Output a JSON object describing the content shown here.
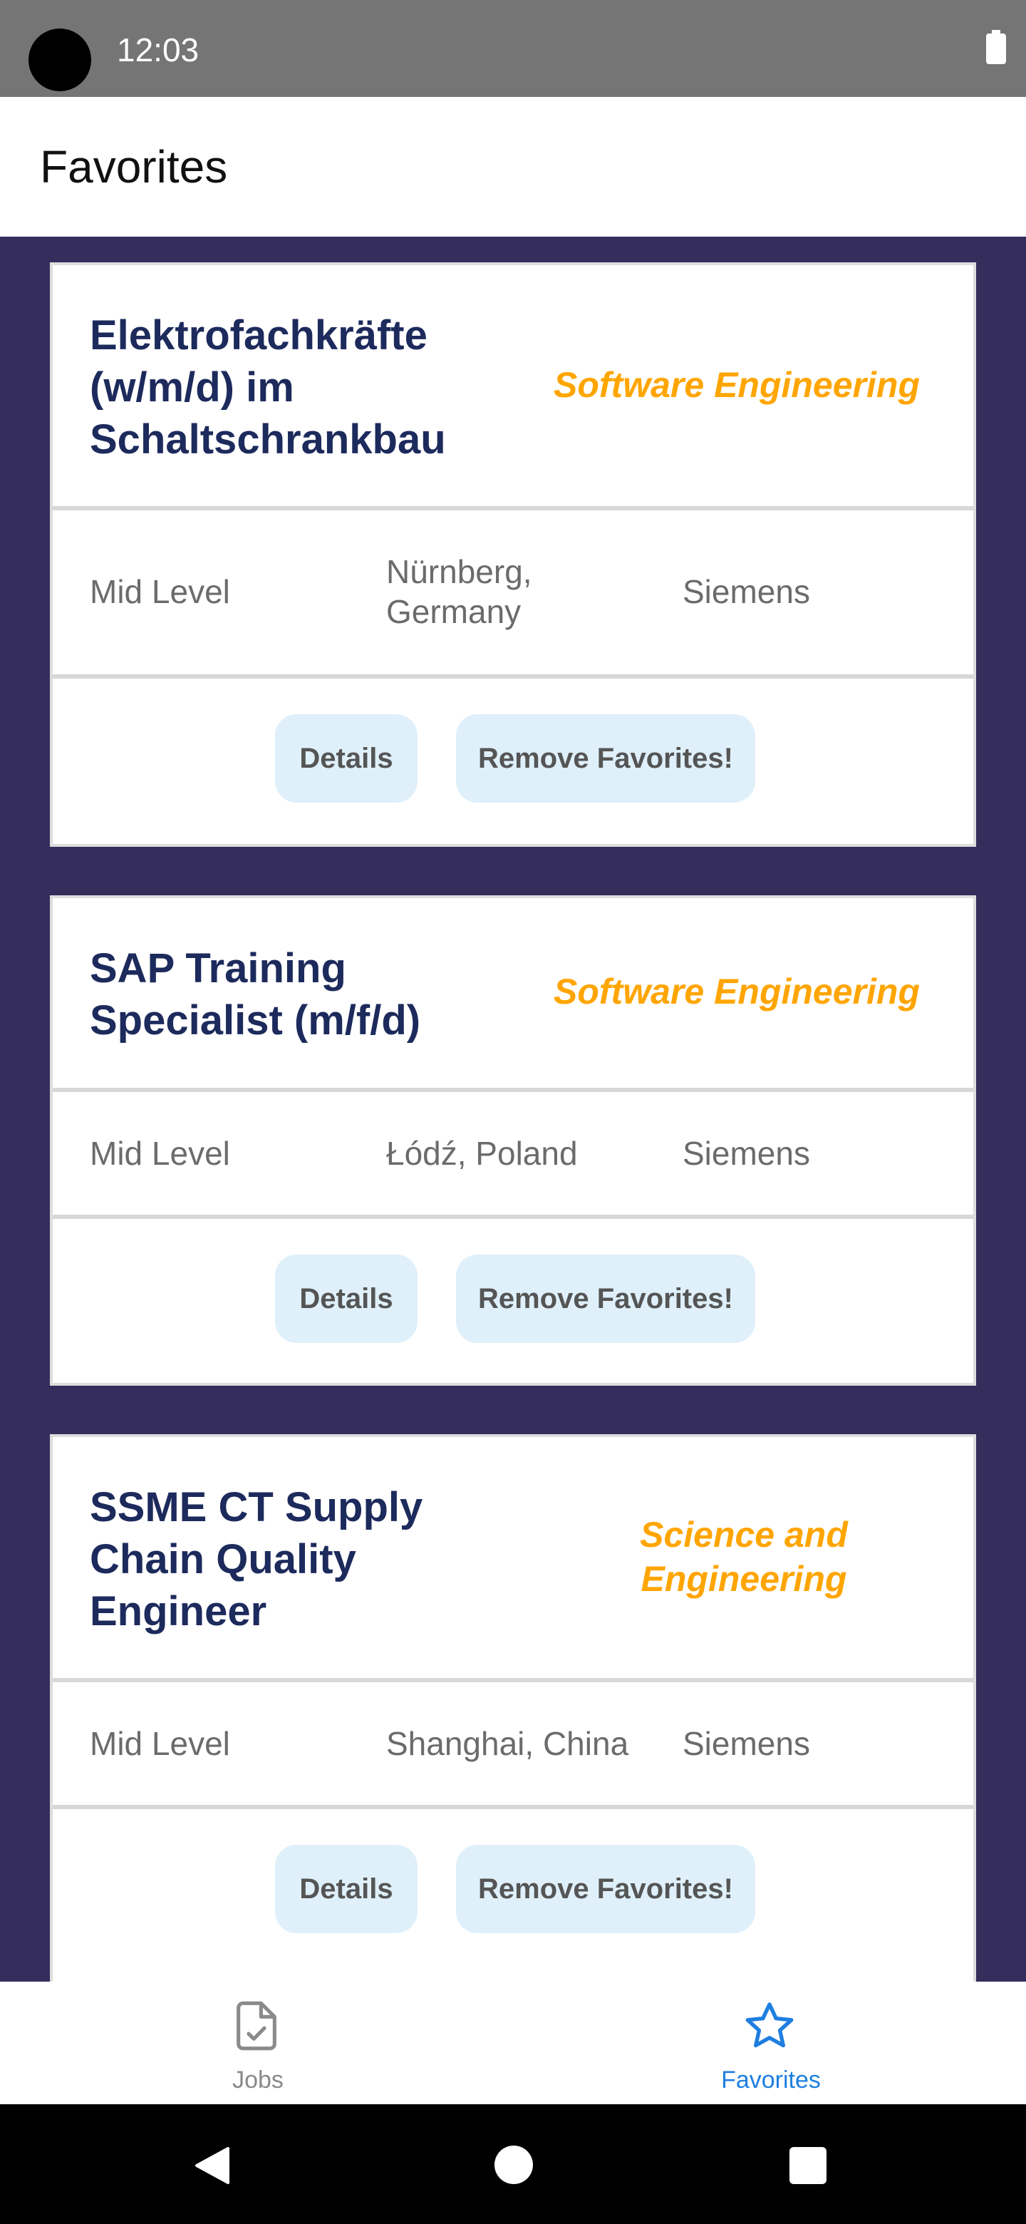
{
  "status_bar": {
    "time": "12:03"
  },
  "header": {
    "title": "Favorites"
  },
  "jobs": [
    {
      "title": "Elektrofachkräfte (w/m/d) im Schaltschrankbau",
      "category": "Software Engineering",
      "level": "Mid Level",
      "location": "Nürnberg, Germany",
      "company": "Siemens",
      "details_label": "Details",
      "remove_label": "Remove Favorites!"
    },
    {
      "title": "SAP Training Specialist (m/f/d)",
      "category": "Software Engineering",
      "level": "Mid Level",
      "location": "Łódź, Poland",
      "company": "Siemens",
      "details_label": "Details",
      "remove_label": "Remove Favorites!"
    },
    {
      "title": "SSME CT Supply Chain Quality Engineer",
      "category": "Science and Engineering",
      "level": "Mid Level",
      "location": "Shanghai, China",
      "company": "Siemens",
      "details_label": "Details",
      "remove_label": "Remove Favorites!"
    }
  ],
  "bottom_nav": {
    "items": [
      {
        "label": "Jobs",
        "icon": "document-check-icon",
        "active": false
      },
      {
        "label": "Favorites",
        "icon": "star-outline-icon",
        "active": true
      }
    ]
  },
  "colors": {
    "background": "#352d5c",
    "title": "#1d2a5c",
    "category": "#ffa500",
    "button_bg": "#dff0fb",
    "active_nav": "#1e7fe0"
  }
}
